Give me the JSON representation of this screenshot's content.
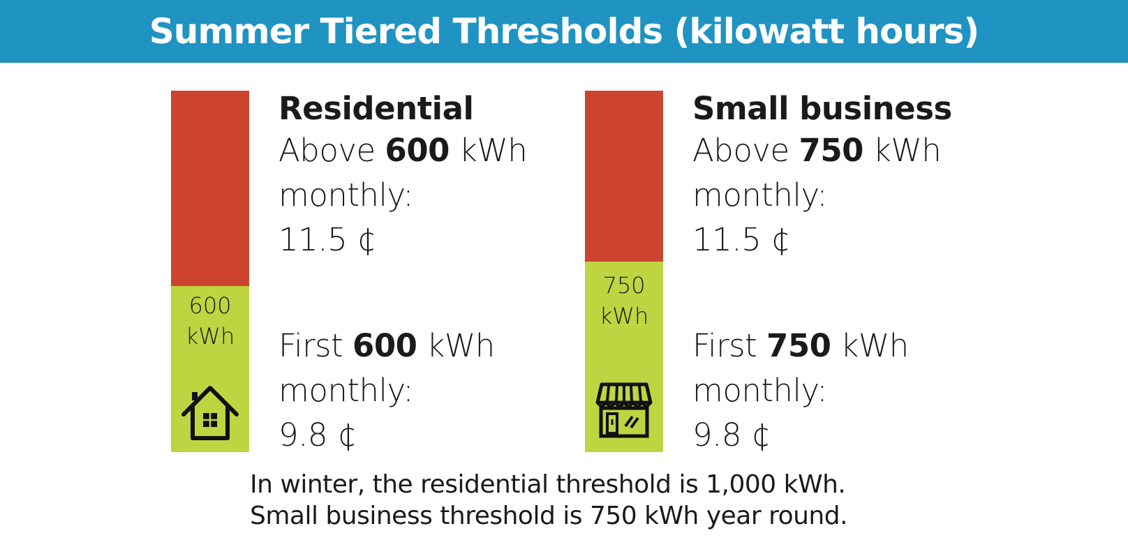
{
  "banner": {
    "title": "Summer Tiered Thresholds (kilowatt hours)"
  },
  "colors": {
    "banner": "#1f93c2",
    "upper_tier": "#cc4430",
    "lower_tier": "#bfd441"
  },
  "columns": [
    {
      "heading": "Residential",
      "icon": "house-icon",
      "bar_label_line1": "600",
      "bar_label_line2": "kWh",
      "upper": {
        "prefix": "Above ",
        "value": "600",
        "unit": " kWh",
        "period": "monthly:",
        "rate": "11.5 ¢"
      },
      "lower": {
        "prefix": "First ",
        "value": "600",
        "unit": " kWh",
        "period": "monthly:",
        "rate": "9.8 ¢"
      }
    },
    {
      "heading": "Small business",
      "icon": "storefront-icon",
      "bar_label_line1": "750",
      "bar_label_line2": "kWh",
      "upper": {
        "prefix": "Above ",
        "value": "750",
        "unit": " kWh",
        "period": "monthly:",
        "rate": "11.5 ¢"
      },
      "lower": {
        "prefix": "First ",
        "value": "750",
        "unit": " kWh",
        "period": "monthly:",
        "rate": "9.8 ¢"
      }
    }
  ],
  "footnote": {
    "line1": "In winter, the residential threshold is 1,000 kWh.",
    "line2": "Small business threshold is 750 kWh year round."
  },
  "chart_data": {
    "type": "bar",
    "title": "Summer Tiered Thresholds (kilowatt hours)",
    "categories": [
      "Residential",
      "Small business"
    ],
    "series": [
      {
        "name": "First",
        "values": [
          600,
          750
        ],
        "rate": "9.8 ¢"
      },
      {
        "name": "Above",
        "values": [
          600,
          750
        ],
        "rate": "11.5 ¢"
      }
    ],
    "thresholds_kwh": [
      600,
      750
    ]
  }
}
